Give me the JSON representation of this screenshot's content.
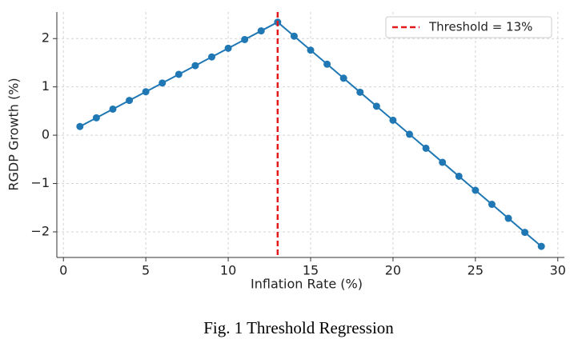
{
  "chart_data": {
    "type": "line",
    "x_label": "Inflation Rate (%)",
    "y_label": "RGDP Growth (%)",
    "caption": "Fig. 1 Threshold Regression",
    "x": [
      1,
      2,
      3,
      4,
      5,
      6,
      7,
      8,
      9,
      10,
      11,
      12,
      13,
      14,
      15,
      16,
      17,
      18,
      19,
      20,
      21,
      22,
      23,
      24,
      25,
      26,
      27,
      28,
      29
    ],
    "series": [
      {
        "color": "#1f77b4",
        "values": [
          0.18,
          0.36,
          0.54,
          0.72,
          0.9,
          1.08,
          1.26,
          1.44,
          1.62,
          1.8,
          1.98,
          2.16,
          2.34,
          2.05,
          1.76,
          1.47,
          1.18,
          0.89,
          0.6,
          0.31,
          0.02,
          -0.27,
          -0.56,
          -0.85,
          -1.14,
          -1.43,
          -1.72,
          -2.01,
          -2.3
        ]
      }
    ],
    "threshold": 13,
    "threshold_color": "#e31a1c",
    "threshold_label": "Threshold = 13%",
    "xlim": [
      -0.4,
      30.4
    ],
    "xticks": [
      0,
      5,
      10,
      15,
      20,
      25,
      30
    ],
    "ylim": [
      -2.53,
      2.55
    ],
    "yticks": [
      {
        "value": -2,
        "label": "−2"
      },
      {
        "value": -1,
        "label": "−1"
      },
      0,
      1,
      2
    ],
    "grid": true,
    "legend_position": "upper right"
  }
}
